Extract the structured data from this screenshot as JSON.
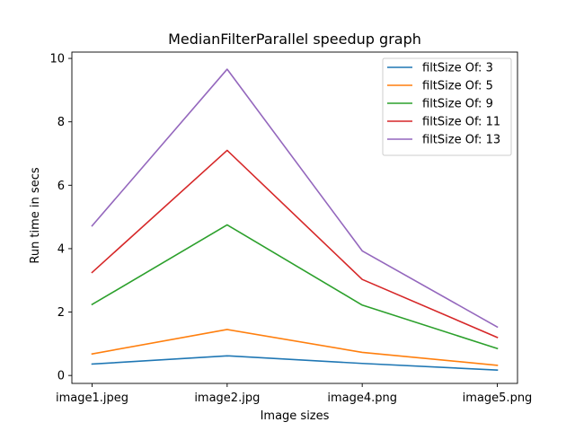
{
  "chart_data": {
    "type": "line",
    "title": "MedianFilterParallel speedup graph",
    "xlabel": "Image sizes",
    "ylabel": "Run time in secs",
    "categories": [
      "image1.jpeg",
      "image2.jpg",
      "image4.png",
      "image5.png"
    ],
    "ylim": [
      -0.25,
      10.2
    ],
    "yticks": [
      0,
      2,
      4,
      6,
      8,
      10
    ],
    "grid": false,
    "legend_position": "top-right",
    "series": [
      {
        "name": "filtSize Of: 3",
        "color": "#1f77b4",
        "values": [
          0.36,
          0.62,
          0.38,
          0.17
        ]
      },
      {
        "name": "filtSize Of: 5",
        "color": "#ff7f0e",
        "values": [
          0.68,
          1.45,
          0.73,
          0.32
        ]
      },
      {
        "name": "filtSize Of: 9",
        "color": "#2ca02c",
        "values": [
          2.24,
          4.75,
          2.22,
          0.85
        ]
      },
      {
        "name": "filtSize Of: 11",
        "color": "#d62728",
        "values": [
          3.25,
          7.1,
          3.03,
          1.2
        ]
      },
      {
        "name": "filtSize Of: 13",
        "color": "#9467bd",
        "values": [
          4.72,
          9.66,
          3.93,
          1.53
        ]
      }
    ]
  }
}
